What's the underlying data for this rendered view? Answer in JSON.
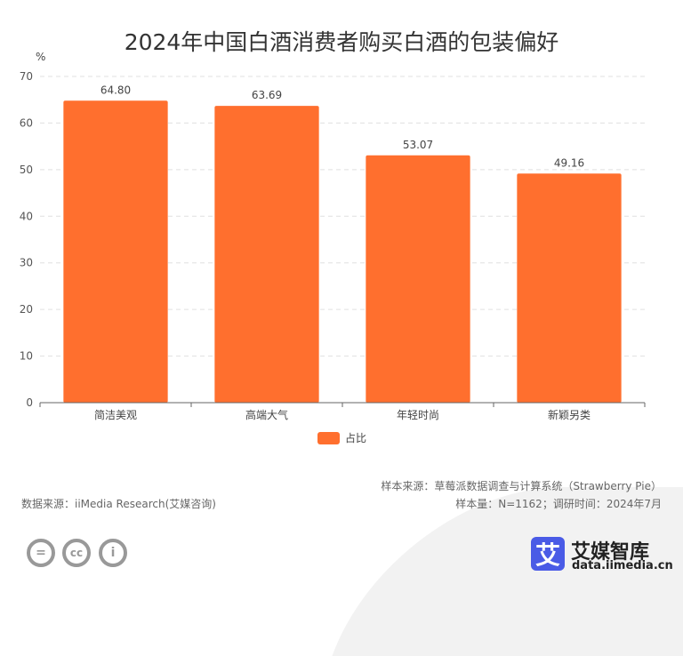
{
  "chart_data": {
    "type": "bar",
    "title": "2024年中国白酒消费者购买白酒的包装偏好",
    "ylabel": "%",
    "ylim": [
      0,
      70
    ],
    "yticks": [
      0,
      10,
      20,
      30,
      40,
      50,
      60,
      70
    ],
    "categories": [
      "简洁美观",
      "高端大气",
      "年轻时尚",
      "新颖另类"
    ],
    "series": [
      {
        "name": "占比",
        "values": [
          64.8,
          63.69,
          53.07,
          49.16
        ],
        "labels": [
          "64.80",
          "63.69",
          "53.07",
          "49.16"
        ]
      }
    ],
    "color": "#ff6f2e",
    "grid": true,
    "legend": "bottom"
  },
  "footer": {
    "source": "数据来源：iiMedia Research(艾媒咨询)",
    "sample_source": "样本来源：草莓派数据调查与计算系统（Strawberry Pie）",
    "sample_info": "样本量：N=1162；调研时间：2024年7月"
  },
  "logo": {
    "mark": "艾",
    "name": "艾媒智库",
    "url": "data.iimedia.cn",
    "color": "#4a5be6"
  },
  "license_icons": [
    "equals-icon",
    "cc-icon",
    "person-icon"
  ]
}
